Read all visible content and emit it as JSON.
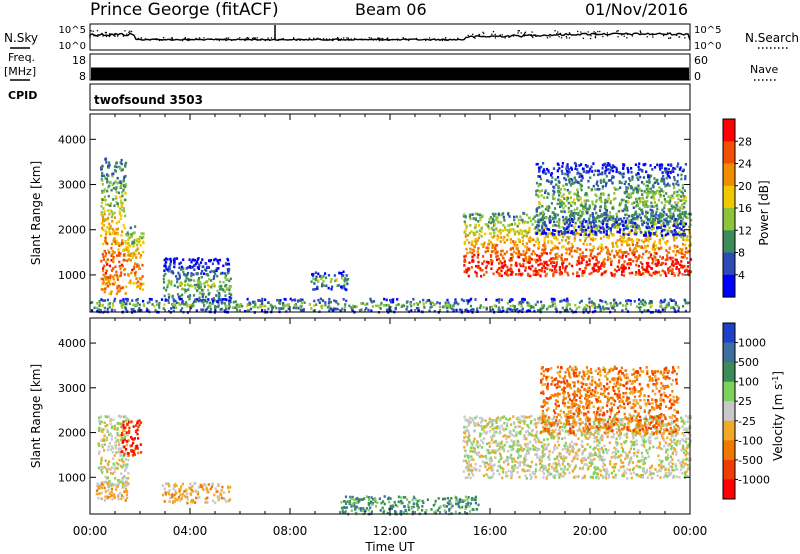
{
  "header": {
    "station": "Prince George (fitACF)",
    "beam": "Beam 06",
    "date": "01/Nov/2016"
  },
  "left_labels": {
    "nsky": "N.Sky",
    "freq": "Freq.",
    "freq_unit": "[MHz]",
    "cpid": "CPID"
  },
  "right_labels": {
    "nsearch": "N.Search",
    "nave": "Nave"
  },
  "cpid_value": "twofsound 3503",
  "colors": {
    "power": [
      "#0000ff",
      "#2c4bb8",
      "#3c8c5a",
      "#8cc43c",
      "#f0c800",
      "#f08c00",
      "#f05000",
      "#ff0000"
    ],
    "velocity": [
      "#2040c8",
      "#3c6ea0",
      "#3c8c5a",
      "#7cd25a",
      "#c8c8c8",
      "#f0aa28",
      "#f07800",
      "#f03c00",
      "#ff0000"
    ]
  },
  "chart_data": [
    {
      "type": "line",
      "panel": "noise",
      "left_ticks": [
        "10^5",
        "10^0"
      ],
      "right_ticks": [
        "10^5",
        "10^0"
      ]
    },
    {
      "type": "line",
      "panel": "frequency",
      "left_ticks": [
        "18",
        "8"
      ],
      "right_ticks": [
        "60",
        "0"
      ],
      "freq_mhz_approx": 10.5,
      "nave_approx": 30
    },
    {
      "type": "heatmap",
      "panel": "power",
      "ylabel": "Slant Range [km]",
      "ylim": [
        180,
        4560
      ],
      "yticks": [
        1000,
        2000,
        3000,
        4000
      ],
      "xlim": [
        0,
        24
      ],
      "colorbar_label": "Power [dB]",
      "colorbar_ticks": [
        "28",
        "24",
        "20",
        "16",
        "12",
        "8",
        "4"
      ],
      "scatter_regions": [
        {
          "t0": 0.4,
          "t1": 1.4,
          "r0": 600,
          "r1": 3600,
          "core": 1200,
          "level": 6
        },
        {
          "t0": 1.4,
          "t1": 2.1,
          "r0": 700,
          "r1": 2100,
          "core": 1100,
          "level": 6
        },
        {
          "t0": 2.9,
          "t1": 5.6,
          "r0": 450,
          "r1": 1400,
          "core": 800,
          "level": 3
        },
        {
          "t0": 8.8,
          "t1": 10.3,
          "r0": 700,
          "r1": 1100,
          "core": 900,
          "level": 3
        },
        {
          "t0": 14.9,
          "t1": 24.0,
          "r0": 1000,
          "r1": 2400,
          "core": 1200,
          "level": 7
        },
        {
          "t0": 17.8,
          "t1": 23.8,
          "r0": 1900,
          "r1": 3500,
          "core": 2700,
          "level": 3
        },
        {
          "t0": 0.0,
          "t1": 24.0,
          "r0": 200,
          "r1": 500,
          "core": 350,
          "level": 3
        }
      ]
    },
    {
      "type": "heatmap",
      "panel": "velocity",
      "ylabel": "Slant Range [km]",
      "xlabel": "Time UT",
      "ylim": [
        180,
        4560
      ],
      "yticks": [
        1000,
        2000,
        3000,
        4000
      ],
      "xlim": [
        0,
        24
      ],
      "xtick_labels": [
        "00:00",
        "04:00",
        "08:00",
        "12:00",
        "16:00",
        "20:00",
        "00:00"
      ],
      "colorbar_label": "Velocity [m s^-1]",
      "colorbar_ticks": [
        "1000",
        "500",
        "100",
        "25",
        "-25",
        "-100",
        "-500",
        "-1000"
      ],
      "scatter_regions": [
        {
          "t0": 0.3,
          "t1": 1.5,
          "r0": 800,
          "r1": 2400,
          "core": 1900,
          "level": 4
        },
        {
          "t0": 1.2,
          "t1": 2.0,
          "r0": 1500,
          "r1": 2300,
          "core": 1800,
          "level": 7
        },
        {
          "t0": 0.2,
          "t1": 1.6,
          "r0": 500,
          "r1": 900,
          "core": 700,
          "level": 5
        },
        {
          "t0": 2.8,
          "t1": 5.6,
          "r0": 450,
          "r1": 900,
          "core": 650,
          "level": 5
        },
        {
          "t0": 14.9,
          "t1": 24.0,
          "r0": 1000,
          "r1": 2400,
          "core": 1500,
          "level": 4
        },
        {
          "t0": 18.0,
          "t1": 23.5,
          "r0": 2000,
          "r1": 3500,
          "core": 2800,
          "level": 6
        },
        {
          "t0": 10.0,
          "t1": 15.5,
          "r0": 200,
          "r1": 600,
          "core": 350,
          "level": 2
        }
      ]
    }
  ]
}
